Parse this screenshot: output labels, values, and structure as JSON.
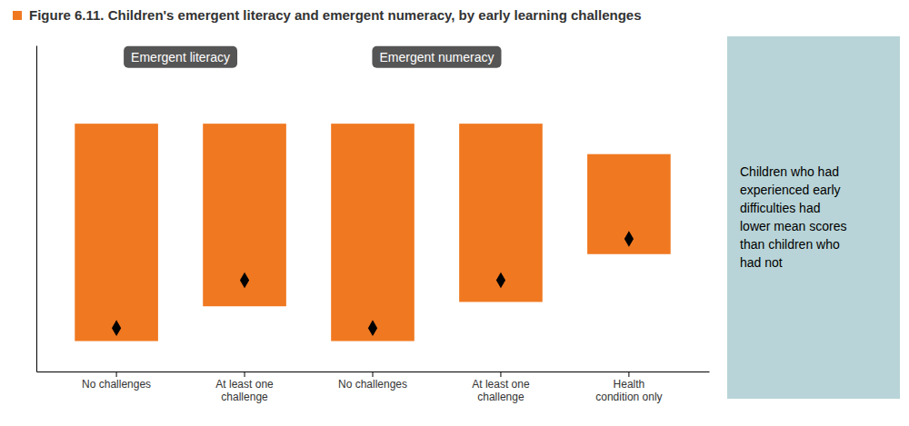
{
  "chart_data": {
    "type": "bar",
    "title": "Figure 6.11. Children's emergent literacy and emergent numeracy, by early learning challenges",
    "categories": [
      "No challenges",
      "At least one\nchallenge",
      "No challenges",
      "At least one\nchallenge",
      "Health\ncondition only"
    ],
    "series": [
      {
        "type": "bar",
        "color": "#f07820",
        "base": [
          2.2,
          3.0,
          2.2,
          3.1,
          4.2
        ],
        "values": [
          7.2,
          7.2,
          7.2,
          7.2,
          6.5
        ]
      },
      {
        "type": "scatter",
        "marker": "diamond",
        "color": "#000000",
        "values": [
          2.5,
          3.6,
          2.5,
          3.6,
          4.55
        ]
      }
    ],
    "sections": [
      "Emergent literacy",
      "Emergent numeracy"
    ],
    "annotation": "Children who had\nexperienced early\ndifficulties had\nlower mean scores\nthan children who\nhad not",
    "ylim": [
      1.5,
      9.0
    ],
    "tick_labels": "x",
    "grid": false
  }
}
